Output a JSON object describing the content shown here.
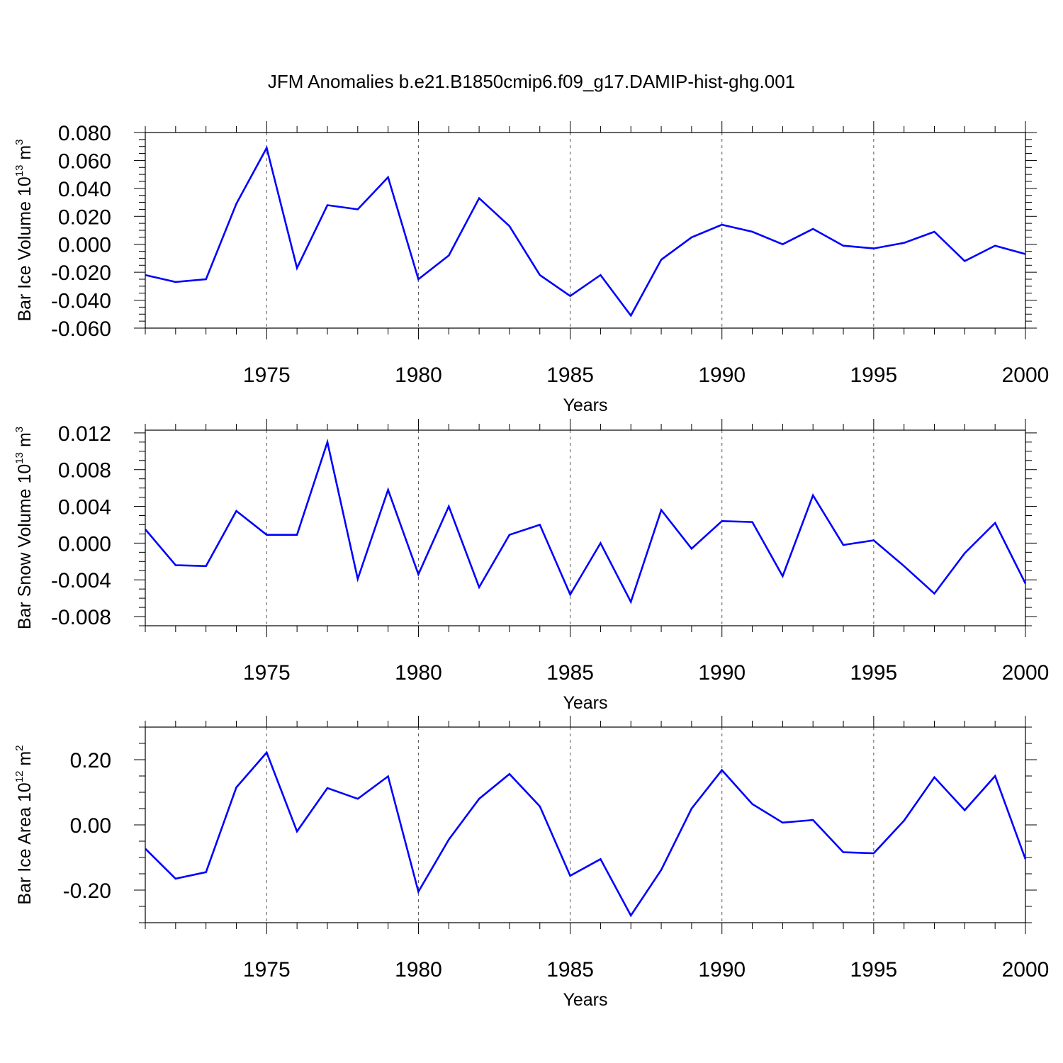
{
  "title": "JFM Anomalies b.e21.B1850cmip6.f09_g17.DAMIP-hist-ghg.001",
  "line_color": "#0000ff",
  "chart_data": [
    {
      "type": "line",
      "ylabel_text": "Bar Ice Volume 10",
      "ylabel_sup": "13",
      "ylabel_unit": "m",
      "ylabel_unit_sup": "3",
      "xlabel": "Years",
      "xlim": [
        1971,
        2000
      ],
      "ylim": [
        -0.06,
        0.08
      ],
      "x_ticks": [
        1975,
        1980,
        1985,
        1990,
        1995,
        2000
      ],
      "y_ticks": [
        "0.080",
        "0.060",
        "0.040",
        "0.020",
        "0.000",
        "-0.020",
        "-0.040",
        "-0.060"
      ],
      "y_tick_values": [
        0.08,
        0.06,
        0.04,
        0.02,
        0.0,
        -0.02,
        -0.04,
        -0.06
      ],
      "x": [
        1971,
        1972,
        1973,
        1974,
        1975,
        1976,
        1977,
        1978,
        1979,
        1980,
        1981,
        1982,
        1983,
        1984,
        1985,
        1986,
        1987,
        1988,
        1989,
        1990,
        1991,
        1992,
        1993,
        1994,
        1995,
        1996,
        1997,
        1998,
        1999,
        2000
      ],
      "series": [
        {
          "values": [
            -0.022,
            -0.027,
            -0.025,
            0.029,
            0.069,
            -0.017,
            0.028,
            0.025,
            0.048,
            -0.025,
            -0.008,
            0.033,
            0.013,
            -0.022,
            -0.037,
            -0.022,
            -0.051,
            -0.011,
            0.005,
            0.014,
            0.009,
            0.0,
            0.011,
            -0.001,
            -0.003,
            0.001,
            0.009,
            -0.012,
            -0.001,
            -0.007
          ]
        }
      ]
    },
    {
      "type": "line",
      "ylabel_text": "Bar Snow Volume 10",
      "ylabel_sup": "13",
      "ylabel_unit": "m",
      "ylabel_unit_sup": "3",
      "xlabel": "Years",
      "xlim": [
        1971,
        2000
      ],
      "ylim": [
        -0.009,
        0.0123
      ],
      "x_ticks": [
        1975,
        1980,
        1985,
        1990,
        1995,
        2000
      ],
      "y_ticks": [
        "0.012",
        "0.008",
        "0.004",
        "0.000",
        "-0.004",
        "-0.008"
      ],
      "y_tick_values": [
        0.012,
        0.008,
        0.004,
        0.0,
        -0.004,
        -0.008
      ],
      "x": [
        1971,
        1972,
        1973,
        1974,
        1975,
        1976,
        1977,
        1978,
        1979,
        1980,
        1981,
        1982,
        1983,
        1984,
        1985,
        1986,
        1987,
        1988,
        1989,
        1990,
        1991,
        1992,
        1993,
        1994,
        1995,
        1996,
        1997,
        1998,
        1999,
        2000
      ],
      "series": [
        {
          "values": [
            0.0015,
            -0.0024,
            -0.0025,
            0.0035,
            0.0009,
            0.0009,
            0.011,
            -0.0039,
            0.0058,
            -0.0034,
            0.004,
            -0.0048,
            0.0009,
            0.002,
            -0.0056,
            0.0,
            -0.0064,
            0.0036,
            -0.0006,
            0.0024,
            0.0023,
            -0.0036,
            0.0052,
            -0.0002,
            0.0003,
            -0.0025,
            -0.0055,
            -0.0011,
            0.0022,
            -0.0044
          ]
        }
      ]
    },
    {
      "type": "line",
      "ylabel_text": "Bar Ice Area 10",
      "ylabel_sup": "12",
      "ylabel_unit": "m",
      "ylabel_unit_sup": "2",
      "xlabel": "Years",
      "xlim": [
        1971,
        2000
      ],
      "ylim": [
        -0.3,
        0.3
      ],
      "x_ticks": [
        1975,
        1980,
        1985,
        1990,
        1995,
        2000
      ],
      "y_ticks": [
        "0.20",
        "0.00",
        "-0.20"
      ],
      "y_tick_values": [
        0.2,
        0.0,
        -0.2
      ],
      "x": [
        1971,
        1972,
        1973,
        1974,
        1975,
        1976,
        1977,
        1978,
        1979,
        1980,
        1981,
        1982,
        1983,
        1984,
        1985,
        1986,
        1987,
        1988,
        1989,
        1990,
        1991,
        1992,
        1993,
        1994,
        1995,
        1996,
        1997,
        1998,
        1999,
        2000
      ],
      "series": [
        {
          "values": [
            -0.073,
            -0.165,
            -0.145,
            0.115,
            0.222,
            -0.02,
            0.113,
            0.08,
            0.149,
            -0.205,
            -0.045,
            0.08,
            0.156,
            0.057,
            -0.156,
            -0.105,
            -0.278,
            -0.138,
            0.05,
            0.168,
            0.064,
            0.007,
            0.015,
            -0.084,
            -0.087,
            0.013,
            0.146,
            0.045,
            0.15,
            -0.105
          ]
        }
      ]
    }
  ]
}
